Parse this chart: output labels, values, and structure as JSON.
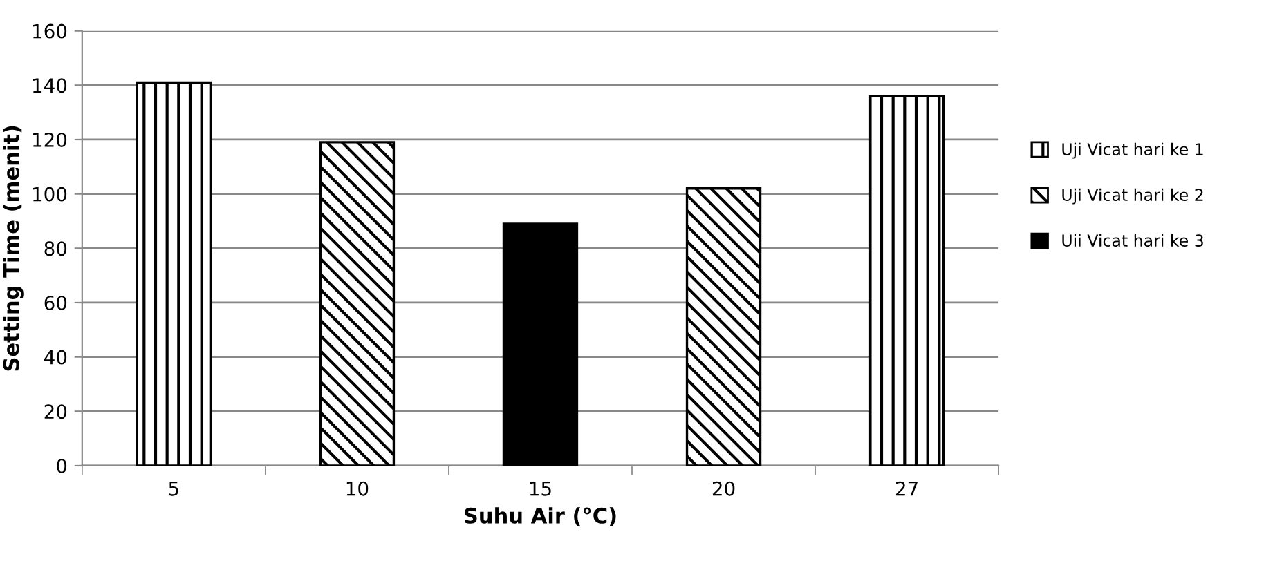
{
  "chart_data": {
    "type": "bar",
    "xlabel": "Suhu Air (°C)",
    "ylabel": "Setting Time (menit)",
    "categories": [
      "5",
      "10",
      "15",
      "20",
      "27"
    ],
    "series": [
      {
        "name": "Uji Vicat hari ke 1",
        "color": "#000000",
        "values": [
          141,
          null,
          null,
          null,
          136
        ]
      },
      {
        "name": "Uji Vicat hari ke 2",
        "color": "#000000",
        "values": [
          null,
          119,
          null,
          102,
          null
        ]
      },
      {
        "name": "Uii Vicat hari ke 3",
        "color": "#000000",
        "values": [
          null,
          null,
          89,
          null,
          null
        ]
      }
    ],
    "ylim": [
      0,
      160
    ],
    "yticks": [
      0,
      20,
      40,
      60,
      80,
      100,
      120,
      140,
      160
    ],
    "grid": "y",
    "legend": "right"
  }
}
